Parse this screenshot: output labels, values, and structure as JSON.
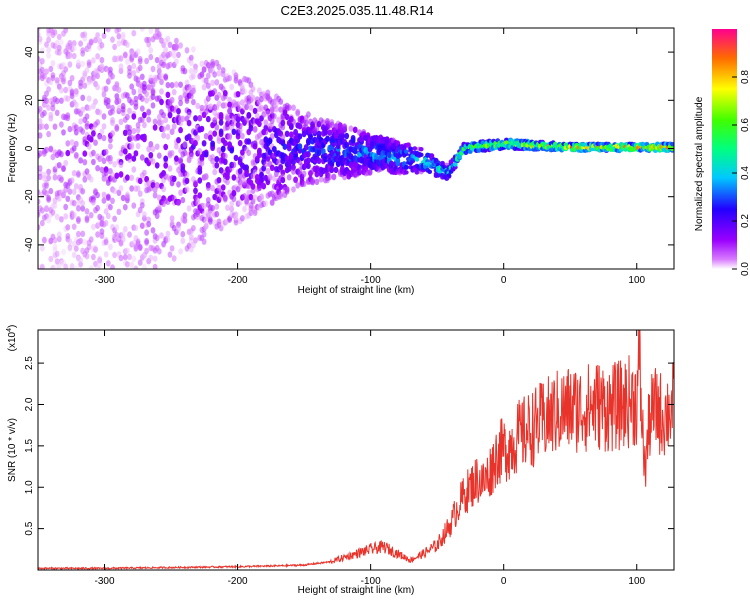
{
  "title": "C2E3.2025.035.11.48.R14",
  "colorbar": {
    "label": "Normalized spectral amplitude",
    "ticks": [
      "0.0",
      "0.2",
      "0.4",
      "0.6",
      "0.8"
    ]
  },
  "chart_data": [
    {
      "type": "heatmap",
      "xlabel": "Height of straight line (km)",
      "ylabel": "Frequency (Hz)",
      "xlim": [
        -350,
        128
      ],
      "ylim": [
        -50,
        50
      ],
      "xticks": [
        "-300",
        "-200",
        "-100",
        "0",
        "100"
      ],
      "yticks": [
        "40",
        "20",
        "0",
        "-20",
        "-40"
      ],
      "zlim": [
        0,
        1
      ],
      "colormap": "rainbow (magenta-blue-cyan-green-yellow-red)",
      "description_points": [
        {
          "x": -350,
          "f_center": 0,
          "f_spread": 50,
          "amp": 0.1
        },
        {
          "x": -260,
          "f_center": 0,
          "f_spread": 50,
          "amp": 0.15
        },
        {
          "x": -150,
          "f_center": 0,
          "f_spread": 15,
          "amp": 0.25
        },
        {
          "x": -100,
          "f_center": -2,
          "f_spread": 8,
          "amp": 0.35
        },
        {
          "x": -60,
          "f_center": -5,
          "f_spread": 5,
          "amp": 0.4
        },
        {
          "x": -42,
          "f_center": -10,
          "f_spread": 3,
          "amp": 0.45
        },
        {
          "x": -30,
          "f_center": 0,
          "f_spread": 2,
          "amp": 0.6
        },
        {
          "x": 0,
          "f_center": 2,
          "f_spread": 2,
          "amp": 0.7
        },
        {
          "x": 50,
          "f_center": 0.5,
          "f_spread": 1.5,
          "amp": 0.85
        },
        {
          "x": 128,
          "f_center": 0.5,
          "f_spread": 1.5,
          "amp": 0.9
        }
      ]
    },
    {
      "type": "line",
      "xlabel": "Height of straight line (km)",
      "ylabel": "SNR (10 * v/v)",
      "yscale_label": "(x10",
      "yscale_exp": "4",
      "xlim": [
        -350,
        128
      ],
      "ylim": [
        0,
        2.9
      ],
      "xticks": [
        "-300",
        "-200",
        "-100",
        "0",
        "100"
      ],
      "yticks": [
        "0.5",
        "1.0",
        "1.5",
        "2.0",
        "2.5"
      ],
      "color": "#e8332b",
      "series": [
        {
          "x": [
            -350,
            -300,
            -250,
            -200,
            -170,
            -150,
            -130,
            -110,
            -100,
            -90,
            -80,
            -70,
            -60,
            -50,
            -40,
            -35,
            -30,
            -25,
            -20,
            -15,
            -10,
            -5,
            0,
            5,
            10,
            20,
            30,
            40,
            50,
            60,
            70,
            80,
            90,
            95,
            100,
            102,
            104,
            106,
            110,
            115,
            120,
            128
          ],
          "y": [
            0.02,
            0.02,
            0.03,
            0.04,
            0.05,
            0.06,
            0.1,
            0.2,
            0.25,
            0.28,
            0.2,
            0.12,
            0.2,
            0.3,
            0.55,
            0.75,
            0.9,
            1.0,
            1.1,
            1.05,
            1.2,
            1.4,
            1.45,
            1.5,
            1.6,
            1.7,
            1.8,
            1.9,
            1.95,
            1.95,
            2.0,
            1.95,
            2.0,
            2.05,
            2.05,
            2.5,
            1.8,
            1.2,
            1.85,
            1.95,
            1.85,
            2.0
          ]
        }
      ]
    }
  ]
}
